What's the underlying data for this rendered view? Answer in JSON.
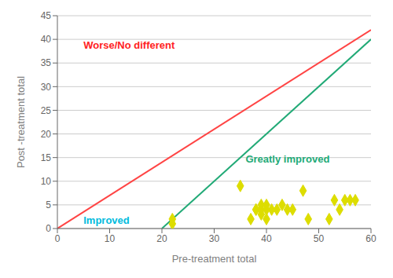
{
  "chart_data": {
    "type": "scatter",
    "xlabel": "Pre-treatment total",
    "ylabel": "Post -treatment total",
    "xlim": [
      0,
      60
    ],
    "ylim": [
      0,
      45
    ],
    "xticks": [
      0,
      10,
      20,
      30,
      40,
      50,
      60
    ],
    "yticks": [
      0,
      5,
      10,
      15,
      20,
      25,
      30,
      35,
      40,
      45
    ],
    "x": [
      22,
      22,
      35,
      37,
      38,
      38,
      39,
      39,
      39,
      40,
      40,
      40,
      41,
      42,
      43,
      44,
      45,
      47,
      48,
      52,
      53,
      54,
      55,
      56,
      57
    ],
    "values": [
      2,
      1,
      9,
      2,
      4,
      4,
      5,
      4,
      3,
      5,
      4,
      2,
      4,
      4,
      5,
      4,
      4,
      8,
      2,
      2,
      6,
      4,
      6,
      6,
      6
    ],
    "color": "#dddd00",
    "marker": "diamond",
    "grid": "y",
    "lines": [
      {
        "x": [
          0,
          60
        ],
        "y": [
          0,
          42
        ],
        "color": "#ff4444"
      },
      {
        "x": [
          20,
          60
        ],
        "y": [
          0,
          40
        ],
        "color": "#22aa77"
      }
    ],
    "annotations": [
      {
        "text": "Worse/No different",
        "x": 5,
        "y": 38,
        "color": "#ff2222"
      },
      {
        "text": "Improved",
        "x": 5,
        "y": 1,
        "color": "#00bbdd"
      },
      {
        "text": "Greatly improved",
        "x": 36,
        "y": 14,
        "color": "#22aa77"
      }
    ]
  }
}
